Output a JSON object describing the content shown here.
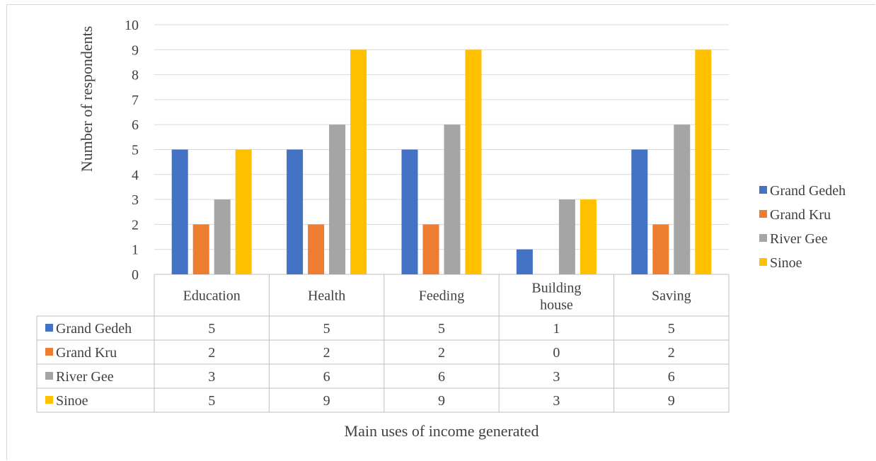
{
  "chart_data": {
    "type": "bar",
    "title": "",
    "xlabel": "Main uses of income generated",
    "ylabel": "Number of respondents",
    "categories": [
      "Education",
      "Health",
      "Feeding",
      "Building house",
      "Saving"
    ],
    "series": [
      {
        "name": "Grand Gedeh",
        "color": "#4472C4",
        "values": [
          5,
          5,
          5,
          1,
          5
        ]
      },
      {
        "name": "Grand Kru",
        "color": "#ED7D31",
        "values": [
          2,
          2,
          2,
          0,
          2
        ]
      },
      {
        "name": "River Gee",
        "color": "#A5A5A5",
        "values": [
          3,
          6,
          6,
          3,
          6
        ]
      },
      {
        "name": "Sinoe",
        "color": "#FFC000",
        "values": [
          5,
          9,
          9,
          3,
          9
        ]
      }
    ],
    "ylim": [
      0,
      10
    ],
    "yticks": [
      0,
      1,
      2,
      3,
      4,
      5,
      6,
      7,
      8,
      9,
      10
    ],
    "grid": true,
    "legend": "right",
    "data_table": true
  }
}
